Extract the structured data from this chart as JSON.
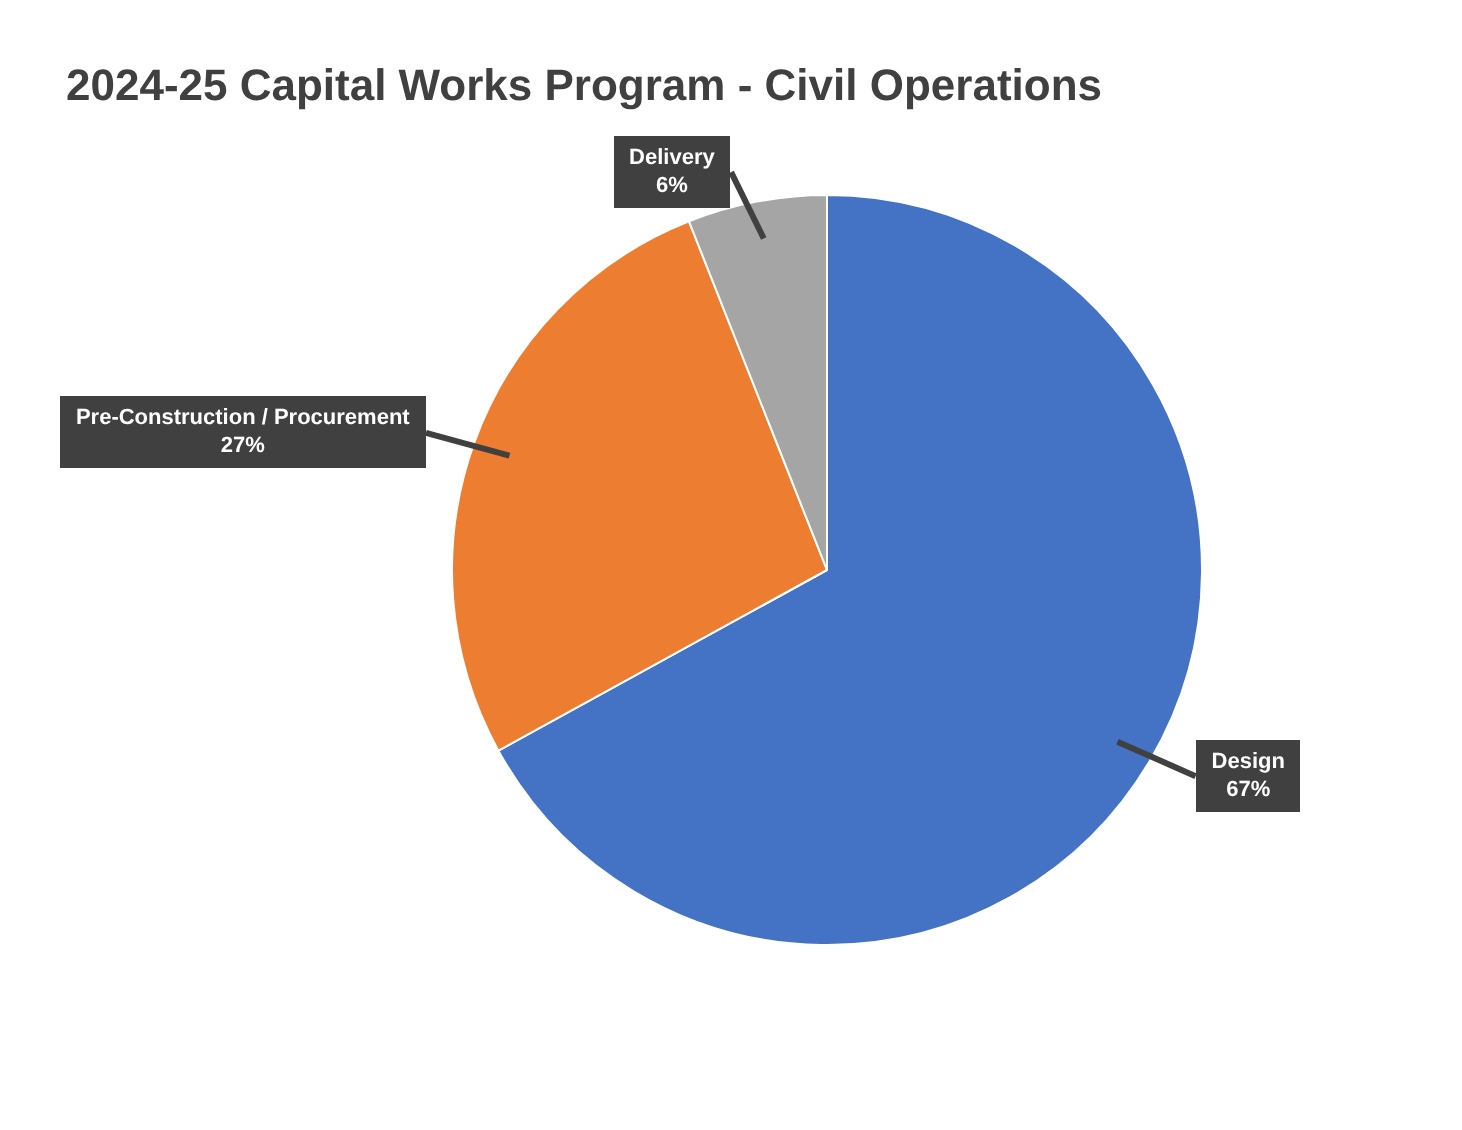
{
  "chart_data": {
    "type": "pie",
    "title": "2024-25 Capital Works Program - Civil Operations",
    "categories": [
      "Design",
      "Pre-Construction / Procurement",
      "Delivery"
    ],
    "values": [
      67,
      27,
      6
    ],
    "value_labels": [
      "67%",
      "27%",
      "6%"
    ],
    "colors": [
      "#4472c4",
      "#ed7d31",
      "#a5a5a5"
    ],
    "legend": false
  }
}
